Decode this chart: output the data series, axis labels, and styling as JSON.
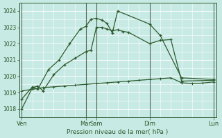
{
  "xlabel": "Pression niveau de la mer( hPa )",
  "bg_color": "#c8eae4",
  "grid_color": "#ffffff",
  "line_color": "#2d5a2d",
  "ylim": [
    1017.5,
    1024.5
  ],
  "yticks": [
    1018,
    1019,
    1020,
    1021,
    1022,
    1023,
    1024
  ],
  "day_labels": [
    "Ven",
    "Mar",
    "Sam",
    "Dim",
    "Lun"
  ],
  "day_positions": [
    0,
    12,
    14,
    24,
    36
  ],
  "n_points": 37,
  "line1_x": [
    0,
    2,
    3,
    4,
    6,
    8,
    10,
    12,
    13,
    14,
    15,
    16,
    17,
    18,
    19,
    20,
    24,
    26,
    28,
    30,
    36
  ],
  "line1_y": [
    1018.0,
    1019.3,
    1019.4,
    1019.1,
    1020.1,
    1020.7,
    1021.1,
    1021.5,
    1021.6,
    1023.0,
    1023.0,
    1022.9,
    1022.8,
    1022.85,
    1022.75,
    1022.7,
    1022.0,
    1022.2,
    1022.25,
    1019.7,
    1019.75
  ],
  "line2_x": [
    0,
    2,
    3,
    5,
    7,
    9,
    11,
    12,
    13,
    14,
    15,
    16,
    17,
    18,
    24,
    26,
    30,
    36
  ],
  "line2_y": [
    1018.6,
    1019.35,
    1019.2,
    1020.4,
    1021.0,
    1022.0,
    1022.9,
    1023.05,
    1023.5,
    1023.55,
    1023.45,
    1023.25,
    1022.65,
    1024.0,
    1023.2,
    1022.5,
    1019.9,
    1019.8
  ],
  "line3_x": [
    0,
    2,
    4,
    6,
    8,
    10,
    12,
    14,
    16,
    18,
    20,
    22,
    24,
    26,
    28,
    30,
    32,
    34,
    36
  ],
  "line3_y": [
    1019.1,
    1019.2,
    1019.3,
    1019.35,
    1019.4,
    1019.45,
    1019.5,
    1019.55,
    1019.6,
    1019.65,
    1019.7,
    1019.75,
    1019.8,
    1019.85,
    1019.9,
    1019.6,
    1019.55,
    1019.58,
    1019.65
  ],
  "vline_positions": [
    0,
    12,
    14,
    24,
    36
  ],
  "vline_color": "#556655",
  "marker": "+",
  "linewidth": 0.9,
  "markersize": 3.0
}
